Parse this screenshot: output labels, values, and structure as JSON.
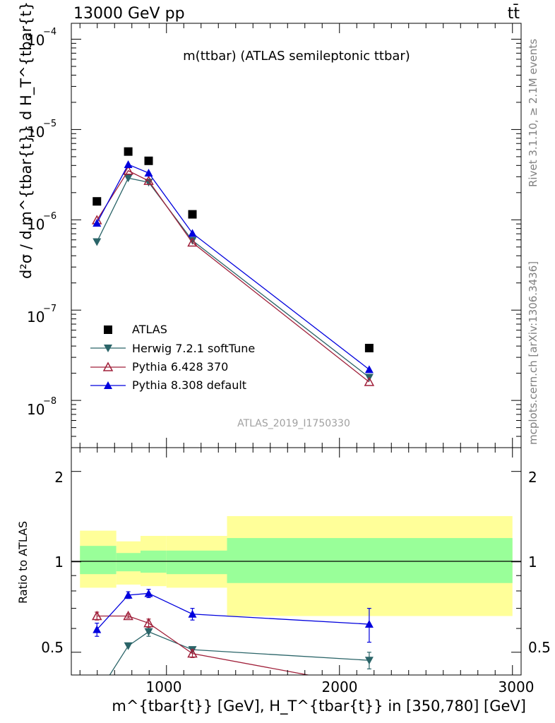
{
  "header": {
    "beam": "13000 GeV pp",
    "process": "tt̄",
    "plot_title": "m(ttbar) (ATLAS semileptonic ttbar)",
    "analysis_id": "ATLAS_2019_I1750330",
    "side_top": "Rivet 3.1.10, ≥ 2.1M events",
    "side_bottom": "mcplots.cern.ch [arXiv:1306.3436]"
  },
  "axes": {
    "xlabel": "m^{tbar{t}} [GeV], H_T^{tbar{t}} in [350,780] [GeV]",
    "ylabel_main": "d²σ / d m^{tbar{t}} d H_T^{tbar{t}} [pb/GeV²]",
    "ylabel_ratio": "Ratio to ATLAS",
    "x_ticks": [
      "1000",
      "2000",
      "3000"
    ],
    "y_main_ticks": [
      "10",
      "10",
      "10",
      "10",
      "10"
    ],
    "y_main_tick_exponents": [
      "−8",
      "−7",
      "−6",
      "−5",
      "−4"
    ],
    "y_ratio_ticks": [
      "0.5",
      "1",
      "2"
    ]
  },
  "legend": [
    {
      "label": "ATLAS",
      "key": "atlas"
    },
    {
      "label": "Herwig 7.2.1 softTune",
      "key": "herwig"
    },
    {
      "label": "Pythia 6.428 370",
      "key": "py6"
    },
    {
      "label": "Pythia 8.308 default",
      "key": "py8"
    }
  ],
  "colors": {
    "atlas": "#000000",
    "herwig": "#2a6468",
    "py6": "#a0203a",
    "py8": "#0000dd",
    "band_inner": "#99ff99",
    "band_outer": "#ffff99"
  },
  "chart_data": {
    "type": "line",
    "x_scale": "linear",
    "y_scale_main": "log",
    "y_scale_ratio": "log",
    "xlim": [
      450,
      3050
    ],
    "ylim_main": [
      3e-09,
      0.00015
    ],
    "ylim_ratio": [
      0.42,
      2.4
    ],
    "bins": [
      [
        500,
        710
      ],
      [
        710,
        850
      ],
      [
        850,
        1000
      ],
      [
        1000,
        1350
      ],
      [
        1350,
        3000
      ]
    ],
    "x": [
      598,
      779,
      897,
      1150,
      2172
    ],
    "series": [
      {
        "name": "ATLAS",
        "key": "atlas",
        "marker": "square",
        "values": [
          1.6e-06,
          5.7e-06,
          4.5e-06,
          1.15e-06,
          3.8e-08
        ]
      },
      {
        "name": "Herwig 7.2.1 softTune",
        "key": "herwig",
        "marker": "triangle-down",
        "values": [
          5.7e-07,
          2.9e-06,
          2.6e-06,
          5.9e-07,
          1.8e-08
        ],
        "ratio": [
          0.36,
          0.525,
          0.585,
          0.51,
          0.47
        ],
        "ratio_err": [
          0,
          0,
          0.02,
          0.01,
          0.03
        ]
      },
      {
        "name": "Pythia 6.428 370",
        "key": "py6",
        "marker": "triangle-open",
        "values": [
          9.9e-07,
          3.5e-06,
          2.7e-06,
          5.6e-07,
          1.6e-08
        ],
        "ratio": [
          0.66,
          0.66,
          0.625,
          0.495,
          0.385
        ],
        "ratio_err": [
          0.02,
          0.01,
          0.02,
          0.015,
          0.03
        ]
      },
      {
        "name": "Pythia 8.308 default",
        "key": "py8",
        "marker": "triangle-up",
        "values": [
          9.2e-07,
          4.1e-06,
          3.3e-06,
          7.1e-07,
          2.2e-08
        ],
        "ratio": [
          0.595,
          0.775,
          0.785,
          0.67,
          0.62
        ],
        "ratio_err": [
          0.03,
          0.02,
          0.025,
          0.03,
          0.08
        ]
      }
    ],
    "ratio_band_inner": [
      [
        0.91,
        1.13
      ],
      [
        0.93,
        1.07
      ],
      [
        0.92,
        1.09
      ],
      [
        0.91,
        1.09
      ],
      [
        0.85,
        1.2
      ]
    ],
    "ratio_band_outer": [
      [
        0.82,
        1.27
      ],
      [
        0.84,
        1.17
      ],
      [
        0.83,
        1.22
      ],
      [
        0.82,
        1.22
      ],
      [
        0.66,
        1.42
      ]
    ]
  }
}
